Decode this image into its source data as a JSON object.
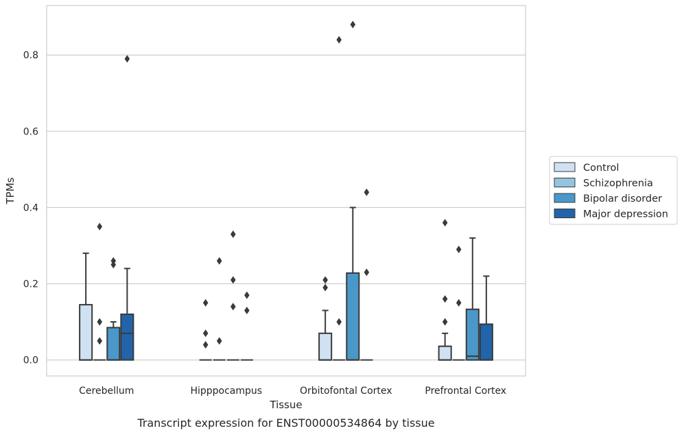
{
  "chart_data": {
    "type": "box",
    "caption": "Transcript expression for ENST00000534864 by tissue",
    "xlabel": "Tissue",
    "ylabel": "TPMs",
    "ylim": [
      -0.042,
      0.93
    ],
    "yticks": [
      0.0,
      0.2,
      0.4,
      0.6,
      0.8
    ],
    "ytick_labels": [
      "0.0",
      "0.2",
      "0.4",
      "0.6",
      "0.8"
    ],
    "grid": "horizontal",
    "legend_position": "right",
    "categories": [
      "Cerebellum",
      "Hipppocampus",
      "Orbitofontal Cortex",
      "Prefrontal Cortex"
    ],
    "series": [
      {
        "name": "Control",
        "color": "#d0e1f2",
        "boxes": [
          {
            "q1": 0,
            "median": 0,
            "q3": 0.145,
            "whisker_low": 0,
            "whisker_high": 0.28,
            "outliers": []
          },
          {
            "q1": 0,
            "median": 0,
            "q3": 0,
            "whisker_low": 0,
            "whisker_high": 0,
            "outliers": [
              0.15,
              0.07,
              0.04
            ]
          },
          {
            "q1": 0,
            "median": 0,
            "q3": 0.07,
            "whisker_low": 0,
            "whisker_high": 0.13,
            "outliers": [
              0.21,
              0.19
            ]
          },
          {
            "q1": 0,
            "median": 0,
            "q3": 0.036,
            "whisker_low": 0,
            "whisker_high": 0.07,
            "outliers": [
              0.36,
              0.16,
              0.1
            ]
          }
        ]
      },
      {
        "name": "Schizophrenia",
        "color": "#94c4df",
        "boxes": [
          {
            "q1": 0,
            "median": 0,
            "q3": 0,
            "whisker_low": 0,
            "whisker_high": 0,
            "outliers": [
              0.35,
              0.1,
              0.05
            ]
          },
          {
            "q1": 0,
            "median": 0,
            "q3": 0,
            "whisker_low": 0,
            "whisker_high": 0,
            "outliers": [
              0.26,
              0.05
            ]
          },
          {
            "q1": 0,
            "median": 0,
            "q3": 0,
            "whisker_low": 0,
            "whisker_high": 0,
            "outliers": [
              0.84,
              0.1
            ]
          },
          {
            "q1": 0,
            "median": 0,
            "q3": 0,
            "whisker_low": 0,
            "whisker_high": 0,
            "outliers": [
              0.29,
              0.15
            ]
          }
        ]
      },
      {
        "name": "Bipolar disorder",
        "color": "#4a98c9",
        "boxes": [
          {
            "q1": 0,
            "median": 0,
            "q3": 0.085,
            "whisker_low": 0,
            "whisker_high": 0.1,
            "outliers": [
              0.26,
              0.25
            ]
          },
          {
            "q1": 0,
            "median": 0,
            "q3": 0,
            "whisker_low": 0,
            "whisker_high": 0,
            "outliers": [
              0.33,
              0.21,
              0.14
            ]
          },
          {
            "q1": 0,
            "median": 0,
            "q3": 0.228,
            "whisker_low": 0,
            "whisker_high": 0.4,
            "outliers": [
              0.88
            ]
          },
          {
            "q1": 0,
            "median": 0.01,
            "q3": 0.133,
            "whisker_low": 0,
            "whisker_high": 0.32,
            "outliers": []
          }
        ]
      },
      {
        "name": "Major depression",
        "color": "#2264aa",
        "boxes": [
          {
            "q1": 0,
            "median": 0.07,
            "q3": 0.12,
            "whisker_low": 0,
            "whisker_high": 0.24,
            "outliers": [
              0.79
            ]
          },
          {
            "q1": 0,
            "median": 0,
            "q3": 0,
            "whisker_low": 0,
            "whisker_high": 0,
            "outliers": [
              0.17,
              0.13
            ]
          },
          {
            "q1": 0,
            "median": 0,
            "q3": 0,
            "whisker_low": 0,
            "whisker_high": 0,
            "outliers": [
              0.44,
              0.23
            ]
          },
          {
            "q1": 0,
            "median": 0,
            "q3": 0.094,
            "whisker_low": 0,
            "whisker_high": 0.22,
            "outliers": []
          }
        ]
      }
    ]
  }
}
